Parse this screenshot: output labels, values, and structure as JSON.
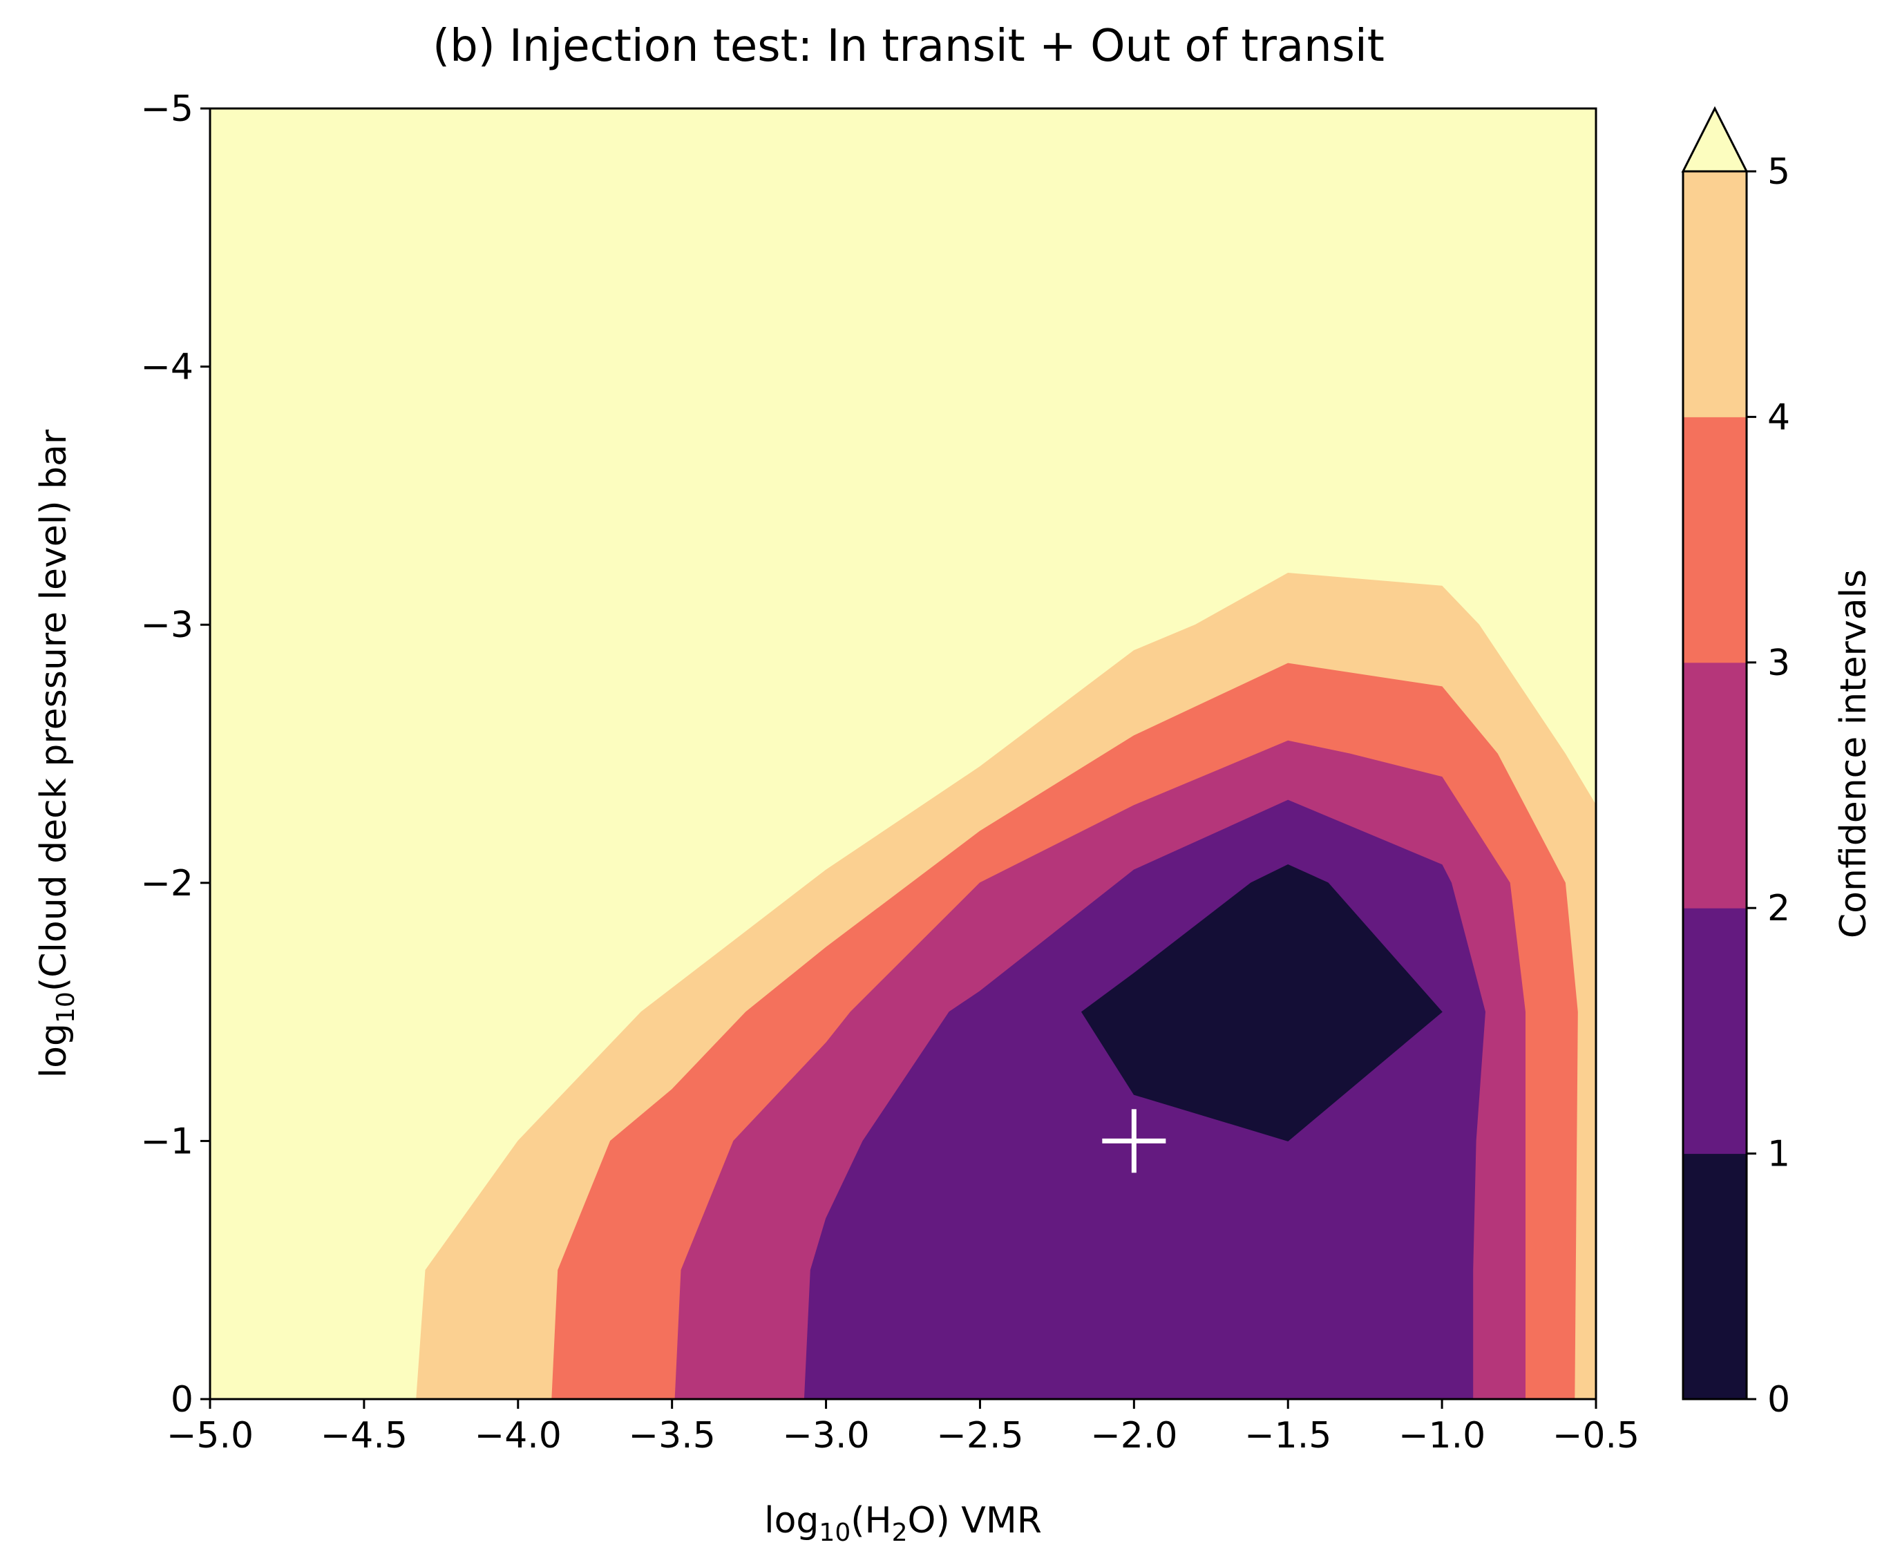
{
  "chart_data": {
    "type": "contourf",
    "title": "(b) Injection test: In transit + Out of transit",
    "xlabel": {
      "prefix": "log",
      "sub_base": "10",
      "open": "(H",
      "sub_elem": "2",
      "rest": "O) VMR"
    },
    "ylabel": {
      "prefix": "log",
      "sub_base": "10",
      "rest": "(Cloud deck pressure level) bar"
    },
    "xlim": [
      -5.0,
      -0.5
    ],
    "ylim": [
      0,
      -5
    ],
    "x_ticks": [
      -5.0,
      -4.5,
      -4.0,
      -3.5,
      -3.0,
      -2.5,
      -2.0,
      -1.5,
      -1.0,
      -0.5
    ],
    "x_tick_labels": [
      "−5.0",
      "−4.5",
      "−4.0",
      "−3.5",
      "−3.0",
      "−2.5",
      "−2.0",
      "−1.5",
      "−1.0",
      "−0.5"
    ],
    "y_ticks": [
      -5,
      -4,
      -3,
      -2,
      -1,
      0
    ],
    "y_tick_labels": [
      "−5",
      "−4",
      "−3",
      "−2",
      "−1",
      "0"
    ],
    "marker": {
      "symbol": "+",
      "x": -2.0,
      "y": -1.0,
      "color": "#ffffff"
    },
    "colorbar": {
      "label": "Confidence intervals",
      "levels": [
        0,
        1,
        2,
        3,
        4,
        5
      ],
      "tick_labels": [
        "0",
        "1",
        "2",
        "3",
        "4",
        "5"
      ],
      "extend": "max",
      "colors": [
        "#140e36",
        "#641a80",
        "#b5367a",
        "#f4715c",
        "#fbd091",
        "#fcfdbf"
      ]
    },
    "background_color": "#fcfdbf",
    "regions": [
      {
        "level": "4-5",
        "color": "#fbd091",
        "points": [
          [
            -4.33,
            0
          ],
          [
            -4.3,
            -0.5
          ],
          [
            -4.0,
            -1.0
          ],
          [
            -3.6,
            -1.5
          ],
          [
            -3.0,
            -2.05
          ],
          [
            -2.5,
            -2.45
          ],
          [
            -2.0,
            -2.9
          ],
          [
            -1.8,
            -3.0
          ],
          [
            -1.5,
            -3.2
          ],
          [
            -1.0,
            -3.15
          ],
          [
            -0.88,
            -3.0
          ],
          [
            -0.6,
            -2.5
          ],
          [
            -0.5,
            -2.3
          ],
          [
            -0.5,
            0
          ]
        ]
      },
      {
        "level": "3-4",
        "color": "#f4715c",
        "points": [
          [
            -3.89,
            0
          ],
          [
            -3.87,
            -0.5
          ],
          [
            -3.7,
            -1.0
          ],
          [
            -3.5,
            -1.2
          ],
          [
            -3.26,
            -1.5
          ],
          [
            -3.0,
            -1.75
          ],
          [
            -2.5,
            -2.2
          ],
          [
            -2.0,
            -2.57
          ],
          [
            -1.5,
            -2.85
          ],
          [
            -1.0,
            -2.76
          ],
          [
            -0.82,
            -2.5
          ],
          [
            -0.6,
            -2.0
          ],
          [
            -0.56,
            -1.5
          ],
          [
            -0.57,
            0
          ]
        ]
      },
      {
        "level": "2-3",
        "color": "#b5367a",
        "points": [
          [
            -3.49,
            0
          ],
          [
            -3.47,
            -0.5
          ],
          [
            -3.3,
            -1.0
          ],
          [
            -3.0,
            -1.38
          ],
          [
            -2.92,
            -1.5
          ],
          [
            -2.5,
            -2.0
          ],
          [
            -2.0,
            -2.3
          ],
          [
            -1.5,
            -2.55
          ],
          [
            -1.3,
            -2.5
          ],
          [
            -1.0,
            -2.41
          ],
          [
            -0.78,
            -2.0
          ],
          [
            -0.73,
            -1.5
          ],
          [
            -0.73,
            0
          ]
        ]
      },
      {
        "level": "1-2",
        "color": "#641a80",
        "points": [
          [
            -3.07,
            0
          ],
          [
            -3.05,
            -0.5
          ],
          [
            -3.0,
            -0.7
          ],
          [
            -2.88,
            -1.0
          ],
          [
            -2.6,
            -1.5
          ],
          [
            -2.5,
            -1.58
          ],
          [
            -2.0,
            -2.05
          ],
          [
            -1.5,
            -2.32
          ],
          [
            -1.0,
            -2.07
          ],
          [
            -0.97,
            -2.0
          ],
          [
            -0.86,
            -1.5
          ],
          [
            -0.89,
            -1.0
          ],
          [
            -0.9,
            -0.5
          ],
          [
            -0.9,
            0
          ]
        ]
      },
      {
        "level": "0-1",
        "color": "#140e36",
        "points": [
          [
            -2.17,
            -1.5
          ],
          [
            -2.0,
            -1.18
          ],
          [
            -1.5,
            -1.0
          ],
          [
            -1.0,
            -1.5
          ],
          [
            -1.37,
            -2.0
          ],
          [
            -1.5,
            -2.07
          ],
          [
            -1.62,
            -2.0
          ],
          [
            -2.0,
            -1.65
          ]
        ]
      }
    ]
  }
}
